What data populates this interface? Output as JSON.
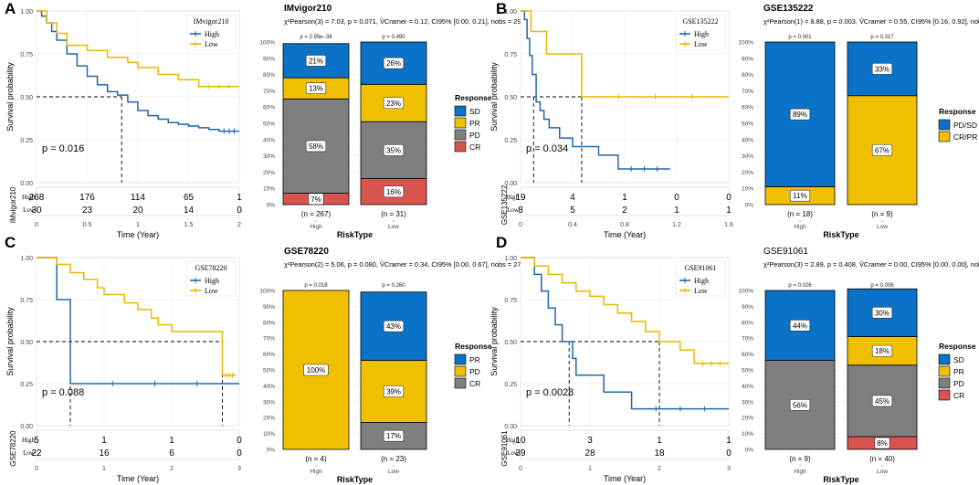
{
  "chart_data": [
    {
      "type": "line",
      "subtype": "kaplan-meier",
      "panel_letter": "A",
      "dataset": "IMvigor210",
      "ylabel": "Survival probability",
      "xlabel": "Time (Year)",
      "xlim": [
        0,
        2
      ],
      "ylim": [
        0,
        1
      ],
      "xticks": [
        "0",
        "0.5",
        "1",
        "1.5",
        "2"
      ],
      "yticks": [
        "0.00",
        "0.25",
        "0.50",
        "0.75",
        "1.00"
      ],
      "legend": [
        "High",
        "Low"
      ],
      "pvalue": "p = 0.016",
      "median_x": [
        0.84,
        null
      ],
      "series": [
        {
          "name": "High",
          "color": "#2166ac",
          "points": [
            [
              0,
              1
            ],
            [
              0.05,
              0.97
            ],
            [
              0.1,
              0.93
            ],
            [
              0.15,
              0.88
            ],
            [
              0.2,
              0.83
            ],
            [
              0.3,
              0.75
            ],
            [
              0.4,
              0.68
            ],
            [
              0.5,
              0.62
            ],
            [
              0.6,
              0.57
            ],
            [
              0.7,
              0.53
            ],
            [
              0.8,
              0.51
            ],
            [
              0.9,
              0.47
            ],
            [
              1.0,
              0.42
            ],
            [
              1.1,
              0.39
            ],
            [
              1.2,
              0.37
            ],
            [
              1.3,
              0.35
            ],
            [
              1.4,
              0.34
            ],
            [
              1.5,
              0.33
            ],
            [
              1.6,
              0.32
            ],
            [
              1.7,
              0.31
            ],
            [
              1.8,
              0.3
            ],
            [
              2.0,
              0.3
            ]
          ]
        },
        {
          "name": "Low",
          "color": "#e6b800",
          "points": [
            [
              0,
              1
            ],
            [
              0.1,
              0.93
            ],
            [
              0.2,
              0.87
            ],
            [
              0.3,
              0.8
            ],
            [
              0.5,
              0.77
            ],
            [
              0.7,
              0.73
            ],
            [
              0.9,
              0.7
            ],
            [
              1.0,
              0.67
            ],
            [
              1.2,
              0.63
            ],
            [
              1.4,
              0.6
            ],
            [
              1.6,
              0.56
            ],
            [
              2.0,
              0.56
            ]
          ]
        }
      ],
      "risk_table": {
        "label": "IMvigor210",
        "rows": [
          {
            "group": "High",
            "counts": [
              "268",
              "176",
              "114",
              "65",
              "1"
            ]
          },
          {
            "group": "Low",
            "counts": [
              "30",
              "23",
              "20",
              "14",
              "0"
            ]
          }
        ]
      }
    },
    {
      "type": "bar",
      "subtype": "stacked-percent",
      "title": "IMvigor210",
      "stats_prefix": "χ²Pearson(3) = 7.03, p = 0.071, V̂Cramer = 0.12, CI95% [0.00, 0.21], nobs = 298",
      "categories": [
        "High",
        "Low"
      ],
      "n_labels": [
        "(n = 267)",
        "(n = 31)"
      ],
      "pvalues": [
        "p = 2.95e−36",
        "p = 0.490"
      ],
      "xlabel": "RiskType",
      "yticks": [
        "0%",
        "10%",
        "20%",
        "30%",
        "40%",
        "50%",
        "60%",
        "70%",
        "80%",
        "90%",
        "100%"
      ],
      "legend_title": "Response",
      "series": [
        {
          "name": "CR",
          "color": "#d9534f",
          "values": [
            7,
            16
          ],
          "labels": [
            "7%",
            "16%"
          ]
        },
        {
          "name": "PD",
          "color": "#7f7f7f",
          "values": [
            58,
            35
          ],
          "labels": [
            "58%",
            "35%"
          ]
        },
        {
          "name": "PR",
          "color": "#f0c000",
          "values": [
            13,
            23
          ],
          "labels": [
            "13%",
            "23%"
          ]
        },
        {
          "name": "SD",
          "color": "#0a72c7",
          "values": [
            21,
            26
          ],
          "labels": [
            "21%",
            "26%"
          ]
        }
      ],
      "legend_order": [
        "SD",
        "PR",
        "PD",
        "CR"
      ]
    },
    {
      "type": "line",
      "subtype": "kaplan-meier",
      "panel_letter": "B",
      "dataset": "GSE135222",
      "ylabel": "Survival probability",
      "xlabel": "Time (Year)",
      "xlim": [
        0,
        1.6
      ],
      "ylim": [
        0,
        1
      ],
      "xticks": [
        "0",
        "0.4",
        "0.8",
        "1.2",
        "1.6"
      ],
      "yticks": [
        "0.00",
        "0.25",
        "0.50",
        "0.75",
        "1.00"
      ],
      "legend": [
        "High",
        "Low"
      ],
      "pvalue": "p = 0.034",
      "median_x": [
        0.1,
        0.47
      ],
      "series": [
        {
          "name": "High",
          "color": "#2166ac",
          "points": [
            [
              0,
              1
            ],
            [
              0.03,
              0.95
            ],
            [
              0.05,
              0.84
            ],
            [
              0.07,
              0.74
            ],
            [
              0.09,
              0.63
            ],
            [
              0.12,
              0.47
            ],
            [
              0.15,
              0.42
            ],
            [
              0.18,
              0.37
            ],
            [
              0.22,
              0.32
            ],
            [
              0.3,
              0.26
            ],
            [
              0.4,
              0.21
            ],
            [
              0.6,
              0.16
            ],
            [
              0.75,
              0.08
            ],
            [
              1.15,
              0.08
            ]
          ]
        },
        {
          "name": "Low",
          "color": "#e6b800",
          "points": [
            [
              0,
              1
            ],
            [
              0.08,
              0.88
            ],
            [
              0.2,
              0.75
            ],
            [
              0.3,
              0.75
            ],
            [
              0.47,
              0.5
            ],
            [
              1.6,
              0.5
            ]
          ]
        }
      ],
      "risk_table": {
        "label": "GSE135222",
        "rows": [
          {
            "group": "High",
            "counts": [
              "19",
              "4",
              "1",
              "0",
              "0"
            ]
          },
          {
            "group": "Low",
            "counts": [
              "8",
              "5",
              "2",
              "1",
              "1"
            ]
          }
        ]
      }
    },
    {
      "type": "bar",
      "subtype": "stacked-percent",
      "title": "GSE135222",
      "stats_prefix": "χ²Pearson(1) = 8.88, p = 0.003, V̂Cramer = 0.55, CI95% [0.16, 0.92], nobs = 27",
      "categories": [
        "High",
        "Low"
      ],
      "n_labels": [
        "(n = 18)",
        "(n = 9)"
      ],
      "pvalues": [
        "p = 0.001",
        "p = 0.317"
      ],
      "xlabel": "RiskType",
      "yticks": [
        "0%",
        "10%",
        "20%",
        "30%",
        "40%",
        "50%",
        "60%",
        "70%",
        "80%",
        "90%",
        "100%"
      ],
      "legend_title": "Response",
      "series": [
        {
          "name": "CR/PR",
          "color": "#f0c000",
          "values": [
            11,
            67
          ],
          "labels": [
            "11%",
            "67%"
          ]
        },
        {
          "name": "PD/SD",
          "color": "#0a72c7",
          "values": [
            89,
            33
          ],
          "labels": [
            "89%",
            "33%"
          ]
        }
      ],
      "legend_order": [
        "PD/SD",
        "CR/PR"
      ]
    },
    {
      "type": "line",
      "subtype": "kaplan-meier",
      "panel_letter": "C",
      "dataset": "GSE78220",
      "ylabel": "Survival probability",
      "xlabel": "Time (Year)",
      "xlim": [
        0,
        3
      ],
      "ylim": [
        0,
        1
      ],
      "xticks": [
        "0",
        "1",
        "2",
        "3"
      ],
      "yticks": [
        "0.00",
        "0.25",
        "0.50",
        "0.75",
        "1.00"
      ],
      "legend": [
        "High",
        "Low"
      ],
      "pvalue": "p = 0.088",
      "median_x": [
        0.5,
        2.75
      ],
      "series": [
        {
          "name": "High",
          "color": "#2166ac",
          "points": [
            [
              0,
              1
            ],
            [
              0.2,
              1
            ],
            [
              0.3,
              0.75
            ],
            [
              0.5,
              0.25
            ],
            [
              3,
              0.25
            ]
          ]
        },
        {
          "name": "Low",
          "color": "#e6b800",
          "points": [
            [
              0,
              1
            ],
            [
              0.3,
              0.96
            ],
            [
              0.5,
              0.91
            ],
            [
              0.7,
              0.87
            ],
            [
              0.9,
              0.82
            ],
            [
              1.0,
              0.78
            ],
            [
              1.3,
              0.73
            ],
            [
              1.5,
              0.69
            ],
            [
              1.7,
              0.64
            ],
            [
              1.8,
              0.6
            ],
            [
              2.0,
              0.56
            ],
            [
              2.6,
              0.56
            ],
            [
              2.75,
              0.3
            ],
            [
              2.95,
              0.3
            ]
          ]
        }
      ],
      "risk_table": {
        "label": "GSE78220",
        "rows": [
          {
            "group": "High",
            "counts": [
              "5",
              "1",
              "1",
              "0"
            ]
          },
          {
            "group": "Low",
            "counts": [
              "22",
              "16",
              "6",
              "0"
            ]
          }
        ]
      }
    },
    {
      "type": "bar",
      "subtype": "stacked-percent",
      "title": "GSE78220",
      "stats_prefix": "χ²Pearson(2) = 5.06, p = 0.080, V̂Cramer = 0.34, CI95% [0.00, 0.67], nobs = 27",
      "categories": [
        "High",
        "Low"
      ],
      "n_labels": [
        "(n = 4)",
        "(n = 23)"
      ],
      "pvalues": [
        "p = 0.018",
        "p = 0.260"
      ],
      "xlabel": "RiskType",
      "yticks": [
        "0%",
        "10%",
        "20%",
        "30%",
        "40%",
        "50%",
        "60%",
        "70%",
        "80%",
        "90%",
        "100%"
      ],
      "legend_title": "Response",
      "series": [
        {
          "name": "CR",
          "color": "#7f7f7f",
          "values": [
            0,
            17
          ],
          "labels": [
            "",
            "17%"
          ]
        },
        {
          "name": "PD",
          "color": "#f0c000",
          "values": [
            100,
            39
          ],
          "labels": [
            "100%",
            "39%"
          ]
        },
        {
          "name": "PR",
          "color": "#0a72c7",
          "values": [
            0,
            43
          ],
          "labels": [
            "",
            "43%"
          ]
        }
      ],
      "legend_order": [
        "PR",
        "PD",
        "CR"
      ]
    },
    {
      "type": "line",
      "subtype": "kaplan-meier",
      "panel_letter": "D",
      "dataset": "GSE91061",
      "ylabel": "Survival probability",
      "xlabel": "Time (Year)",
      "xlim": [
        0,
        3
      ],
      "ylim": [
        0,
        1
      ],
      "xticks": [
        "0",
        "1",
        "2",
        "3"
      ],
      "yticks": [
        "0.00",
        "0.25",
        "0.50",
        "0.75",
        "1.00"
      ],
      "legend": [
        "High",
        "Low"
      ],
      "pvalue": "p = 0.0028",
      "median_x": [
        0.7,
        2.0
      ],
      "series": [
        {
          "name": "High",
          "color": "#2166ac",
          "points": [
            [
              0,
              1
            ],
            [
              0.2,
              0.9
            ],
            [
              0.3,
              0.8
            ],
            [
              0.4,
              0.7
            ],
            [
              0.5,
              0.6
            ],
            [
              0.6,
              0.5
            ],
            [
              0.75,
              0.4
            ],
            [
              0.8,
              0.3
            ],
            [
              1.2,
              0.2
            ],
            [
              1.6,
              0.1
            ],
            [
              3,
              0.1
            ]
          ]
        },
        {
          "name": "Low",
          "color": "#e6b800",
          "points": [
            [
              0,
              1
            ],
            [
              0.2,
              0.95
            ],
            [
              0.4,
              0.9
            ],
            [
              0.6,
              0.85
            ],
            [
              0.8,
              0.8
            ],
            [
              1.0,
              0.77
            ],
            [
              1.2,
              0.72
            ],
            [
              1.4,
              0.67
            ],
            [
              1.6,
              0.62
            ],
            [
              1.8,
              0.56
            ],
            [
              2.0,
              0.5
            ],
            [
              2.3,
              0.45
            ],
            [
              2.5,
              0.37
            ],
            [
              3,
              0.37
            ]
          ]
        }
      ],
      "risk_table": {
        "label": "GSE91061",
        "rows": [
          {
            "group": "High",
            "counts": [
              "10",
              "3",
              "1",
              "1"
            ]
          },
          {
            "group": "Low",
            "counts": [
              "39",
              "28",
              "18",
              "0"
            ]
          }
        ]
      }
    },
    {
      "type": "bar",
      "subtype": "stacked-percent",
      "title": "GSE91061",
      "stats_prefix": "χ²Pearson(3) = 2.89, p = 0.408, V̂Cramer = 0.00, CI95% [0.00, 0.00], nobs = 49",
      "categories": [
        "High",
        "Low"
      ],
      "n_labels": [
        "(n = 9)",
        "(n = 40)"
      ],
      "pvalues": [
        "p = 0.026",
        "p = 0.006"
      ],
      "xlabel": "RiskType",
      "yticks": [
        "0%",
        "10%",
        "20%",
        "30%",
        "40%",
        "50%",
        "60%",
        "70%",
        "80%",
        "90%",
        "100%"
      ],
      "legend_title": "Response",
      "series": [
        {
          "name": "CR",
          "color": "#d9534f",
          "values": [
            0,
            8
          ],
          "labels": [
            "",
            "8%"
          ]
        },
        {
          "name": "PD",
          "color": "#7f7f7f",
          "values": [
            56,
            45
          ],
          "labels": [
            "56%",
            "45%"
          ]
        },
        {
          "name": "PR",
          "color": "#f0c000",
          "values": [
            0,
            18
          ],
          "labels": [
            "",
            "18%"
          ]
        },
        {
          "name": "SD",
          "color": "#0a72c7",
          "values": [
            44,
            30
          ],
          "labels": [
            "44%",
            "30%"
          ]
        }
      ],
      "legend_order": [
        "SD",
        "PR",
        "PD",
        "CR"
      ]
    }
  ]
}
